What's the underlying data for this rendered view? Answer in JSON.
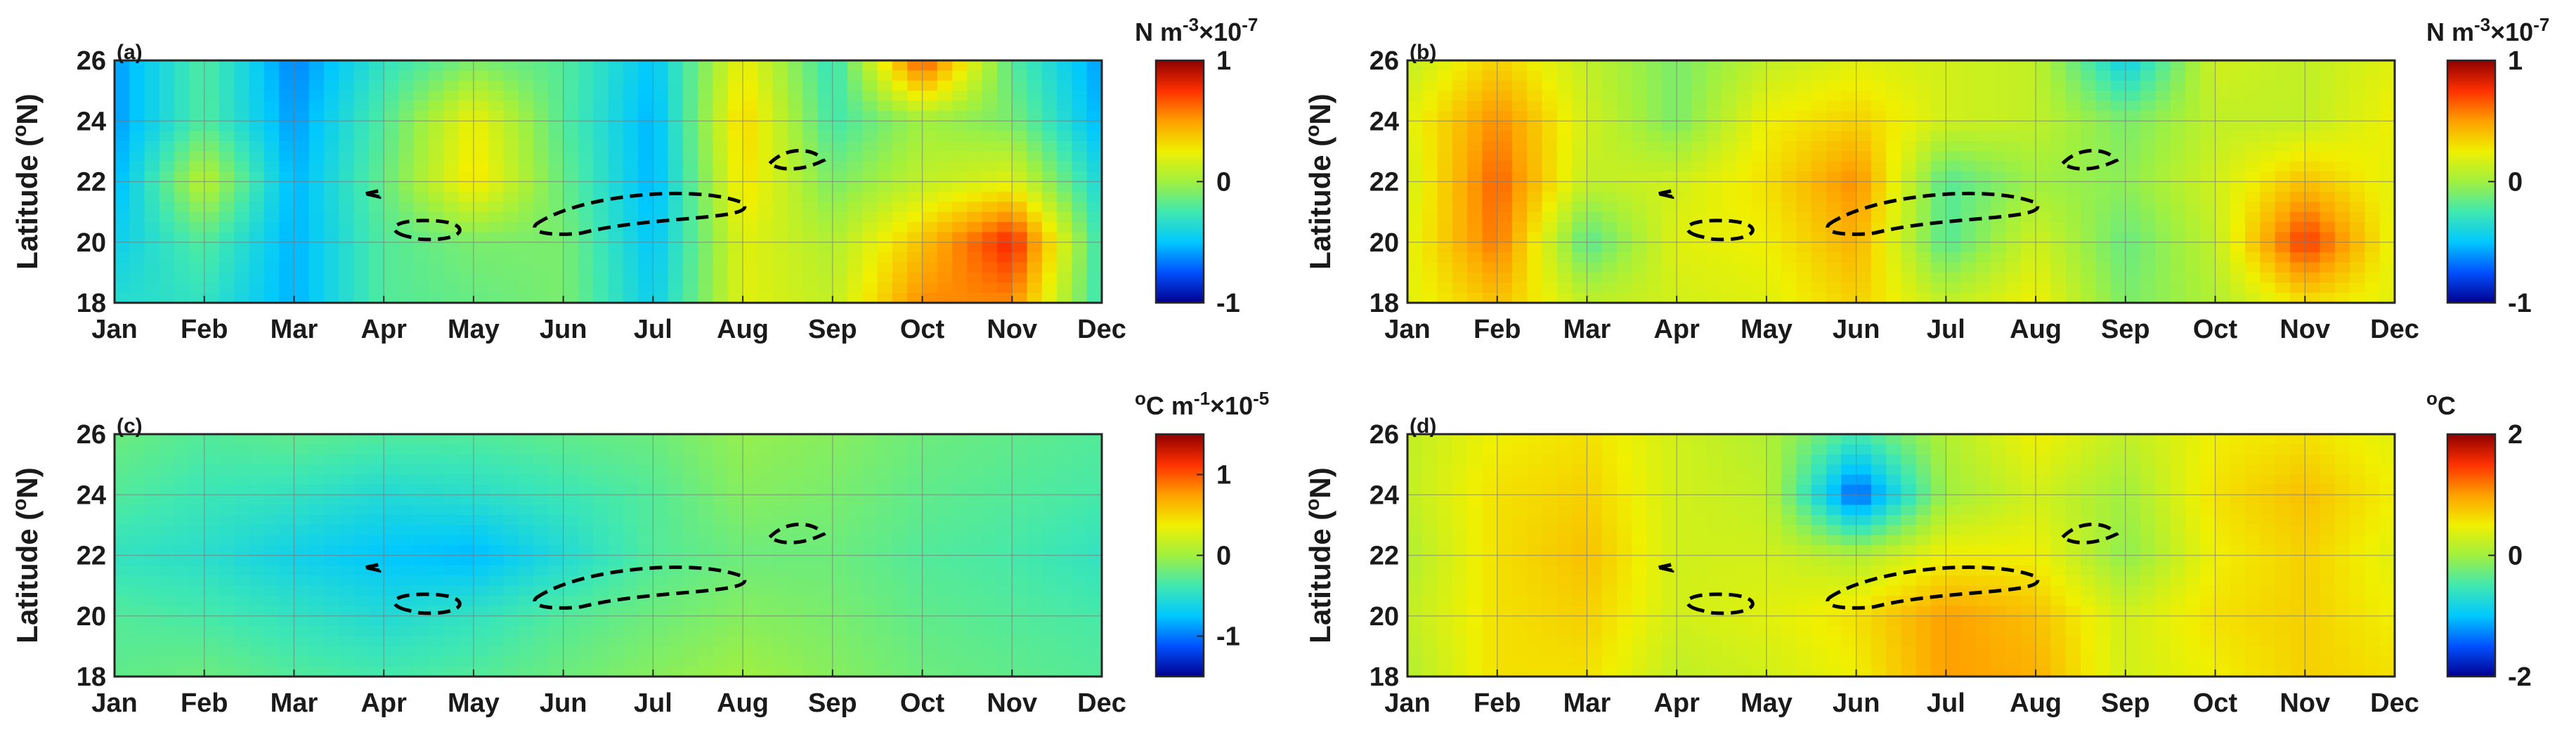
{
  "figure": {
    "months": [
      "Jan",
      "Feb",
      "Mar",
      "Apr",
      "May",
      "Jun",
      "Jul",
      "Aug",
      "Sep",
      "Oct",
      "Nov",
      "Dec"
    ],
    "lat_ticks": [
      18,
      20,
      22,
      24,
      26
    ],
    "lat_range": [
      18,
      26
    ],
    "month_range": [
      1,
      12
    ],
    "ylabel": "Latitude (",
    "ylabel_sup": "o",
    "ylabel_tail": "N)",
    "colorscale": [
      "#00008f",
      "#0050ff",
      "#00c8ff",
      "#40e8b0",
      "#a0f040",
      "#f0f000",
      "#ffa000",
      "#ff3000",
      "#8f0000"
    ]
  },
  "chart_data": [
    {
      "type": "heatmap",
      "panel": "(a)",
      "unit_main": "N m",
      "unit_exp": "-3",
      "unit_scale": "×10",
      "unit_scale_exp": "-7",
      "colorbar_ticks": [
        {
          "label": "1",
          "value": 1
        },
        {
          "label": "0",
          "value": 0
        },
        {
          "label": "-1",
          "value": -1
        }
      ],
      "vrange": [
        -1,
        1
      ],
      "x": [
        1,
        2,
        3,
        4,
        5,
        6,
        7,
        8,
        9,
        10,
        11,
        12
      ],
      "y": [
        18,
        20,
        22,
        24,
        26
      ],
      "z": [
        [
          -0.35,
          -0.3,
          -0.55,
          -0.2,
          -0.15,
          -0.1,
          -0.45,
          0.2,
          0.1,
          0.55,
          0.55,
          -0.3
        ],
        [
          -0.45,
          -0.2,
          -0.55,
          -0.2,
          -0.1,
          -0.1,
          -0.5,
          0.2,
          0.05,
          0.4,
          0.8,
          -0.3
        ],
        [
          -0.55,
          0.1,
          -0.55,
          -0.15,
          0.3,
          -0.15,
          -0.55,
          0.3,
          -0.1,
          0.1,
          0.2,
          -0.4
        ],
        [
          -0.6,
          -0.2,
          -0.6,
          -0.2,
          0.25,
          -0.2,
          -0.55,
          0.35,
          -0.25,
          0.0,
          -0.1,
          -0.55
        ],
        [
          -0.6,
          -0.2,
          -0.65,
          -0.3,
          -0.1,
          -0.2,
          -0.5,
          0.25,
          -0.3,
          0.7,
          -0.2,
          -0.6
        ]
      ]
    },
    {
      "type": "heatmap",
      "panel": "(b)",
      "unit_main": "N m",
      "unit_exp": "-3",
      "unit_scale": "×10",
      "unit_scale_exp": "-7",
      "colorbar_ticks": [
        {
          "label": "1",
          "value": 1
        },
        {
          "label": "0",
          "value": 0
        },
        {
          "label": "-1",
          "value": -1
        }
      ],
      "vrange": [
        -1,
        1
      ],
      "x": [
        1,
        2,
        3,
        4,
        5,
        6,
        7,
        8,
        9,
        10,
        11,
        12
      ],
      "y": [
        18,
        20,
        22,
        24,
        26
      ],
      "z": [
        [
          0.2,
          0.4,
          0.1,
          0.15,
          0.2,
          0.35,
          0.1,
          0.25,
          -0.1,
          0.05,
          0.3,
          0.2
        ],
        [
          0.2,
          0.6,
          -0.2,
          0.2,
          0.25,
          0.45,
          -0.2,
          0.15,
          -0.15,
          0.1,
          0.75,
          0.2
        ],
        [
          0.15,
          0.65,
          0.1,
          0.15,
          0.3,
          0.55,
          -0.2,
          0.0,
          -0.05,
          0.15,
          0.4,
          0.2
        ],
        [
          0.2,
          0.55,
          0.15,
          -0.1,
          0.25,
          0.35,
          0.15,
          0.1,
          -0.1,
          0.1,
          0.1,
          0.25
        ],
        [
          0.1,
          0.35,
          0.1,
          -0.1,
          0.1,
          0.2,
          0.15,
          0.1,
          -0.45,
          0.15,
          0.1,
          0.2
        ]
      ]
    },
    {
      "type": "heatmap",
      "panel": "(c)",
      "unit_main": "°C m",
      "unit_exp": "-1",
      "unit_scale": "×10",
      "unit_scale_exp": "-5",
      "colorbar_ticks": [
        {
          "label": "1",
          "value": 1
        },
        {
          "label": "0",
          "value": 0
        },
        {
          "label": "-1",
          "value": -1
        }
      ],
      "vrange": [
        -1.5,
        1.5
      ],
      "x": [
        1,
        2,
        3,
        4,
        5,
        6,
        7,
        8,
        9,
        10,
        11,
        12
      ],
      "y": [
        18,
        20,
        22,
        24,
        26
      ],
      "z": [
        [
          -0.25,
          -0.2,
          -0.3,
          -0.35,
          -0.3,
          -0.2,
          -0.1,
          0.0,
          -0.1,
          -0.2,
          -0.25,
          -0.3
        ],
        [
          -0.3,
          -0.35,
          -0.45,
          -0.55,
          -0.45,
          -0.3,
          -0.2,
          -0.1,
          -0.15,
          -0.25,
          -0.3,
          -0.35
        ],
        [
          -0.45,
          -0.5,
          -0.65,
          -0.75,
          -0.8,
          -0.55,
          -0.3,
          -0.2,
          -0.2,
          -0.3,
          -0.35,
          -0.45
        ],
        [
          -0.3,
          -0.4,
          -0.45,
          -0.55,
          -0.5,
          -0.4,
          -0.3,
          -0.1,
          -0.15,
          -0.25,
          -0.3,
          -0.35
        ],
        [
          -0.2,
          -0.3,
          -0.25,
          -0.3,
          -0.3,
          -0.25,
          -0.2,
          -0.05,
          -0.1,
          -0.2,
          -0.25,
          -0.3
        ]
      ]
    },
    {
      "type": "heatmap",
      "panel": "(d)",
      "unit_main": "°C",
      "unit_exp": "o",
      "unit_scale": "",
      "unit_scale_exp": "",
      "colorbar_ticks": [
        {
          "label": "2",
          "value": 2
        },
        {
          "label": "0",
          "value": 0
        },
        {
          "label": "-2",
          "value": -2
        }
      ],
      "vrange": [
        -2,
        2
      ],
      "x": [
        1,
        2,
        3,
        4,
        5,
        6,
        7,
        8,
        9,
        10,
        11,
        12
      ],
      "y": [
        18,
        20,
        22,
        24,
        26
      ],
      "z": [
        [
          0.1,
          0.6,
          0.6,
          0.2,
          0.3,
          0.5,
          1.0,
          0.9,
          0.3,
          0.5,
          0.7,
          0.6
        ],
        [
          0.2,
          0.6,
          0.7,
          0.3,
          0.4,
          0.6,
          1.0,
          0.8,
          0.3,
          0.6,
          0.7,
          0.5
        ],
        [
          0.1,
          0.6,
          0.8,
          0.3,
          0.3,
          0.1,
          0.5,
          0.5,
          -0.1,
          0.5,
          0.7,
          0.4
        ],
        [
          0.2,
          0.6,
          0.7,
          0.3,
          0.2,
          -1.5,
          0.0,
          0.3,
          0.0,
          0.6,
          0.8,
          0.5
        ],
        [
          0.2,
          0.5,
          0.6,
          0.3,
          0.1,
          -0.5,
          0.1,
          0.5,
          0.2,
          0.5,
          0.6,
          0.4
        ]
      ]
    }
  ]
}
